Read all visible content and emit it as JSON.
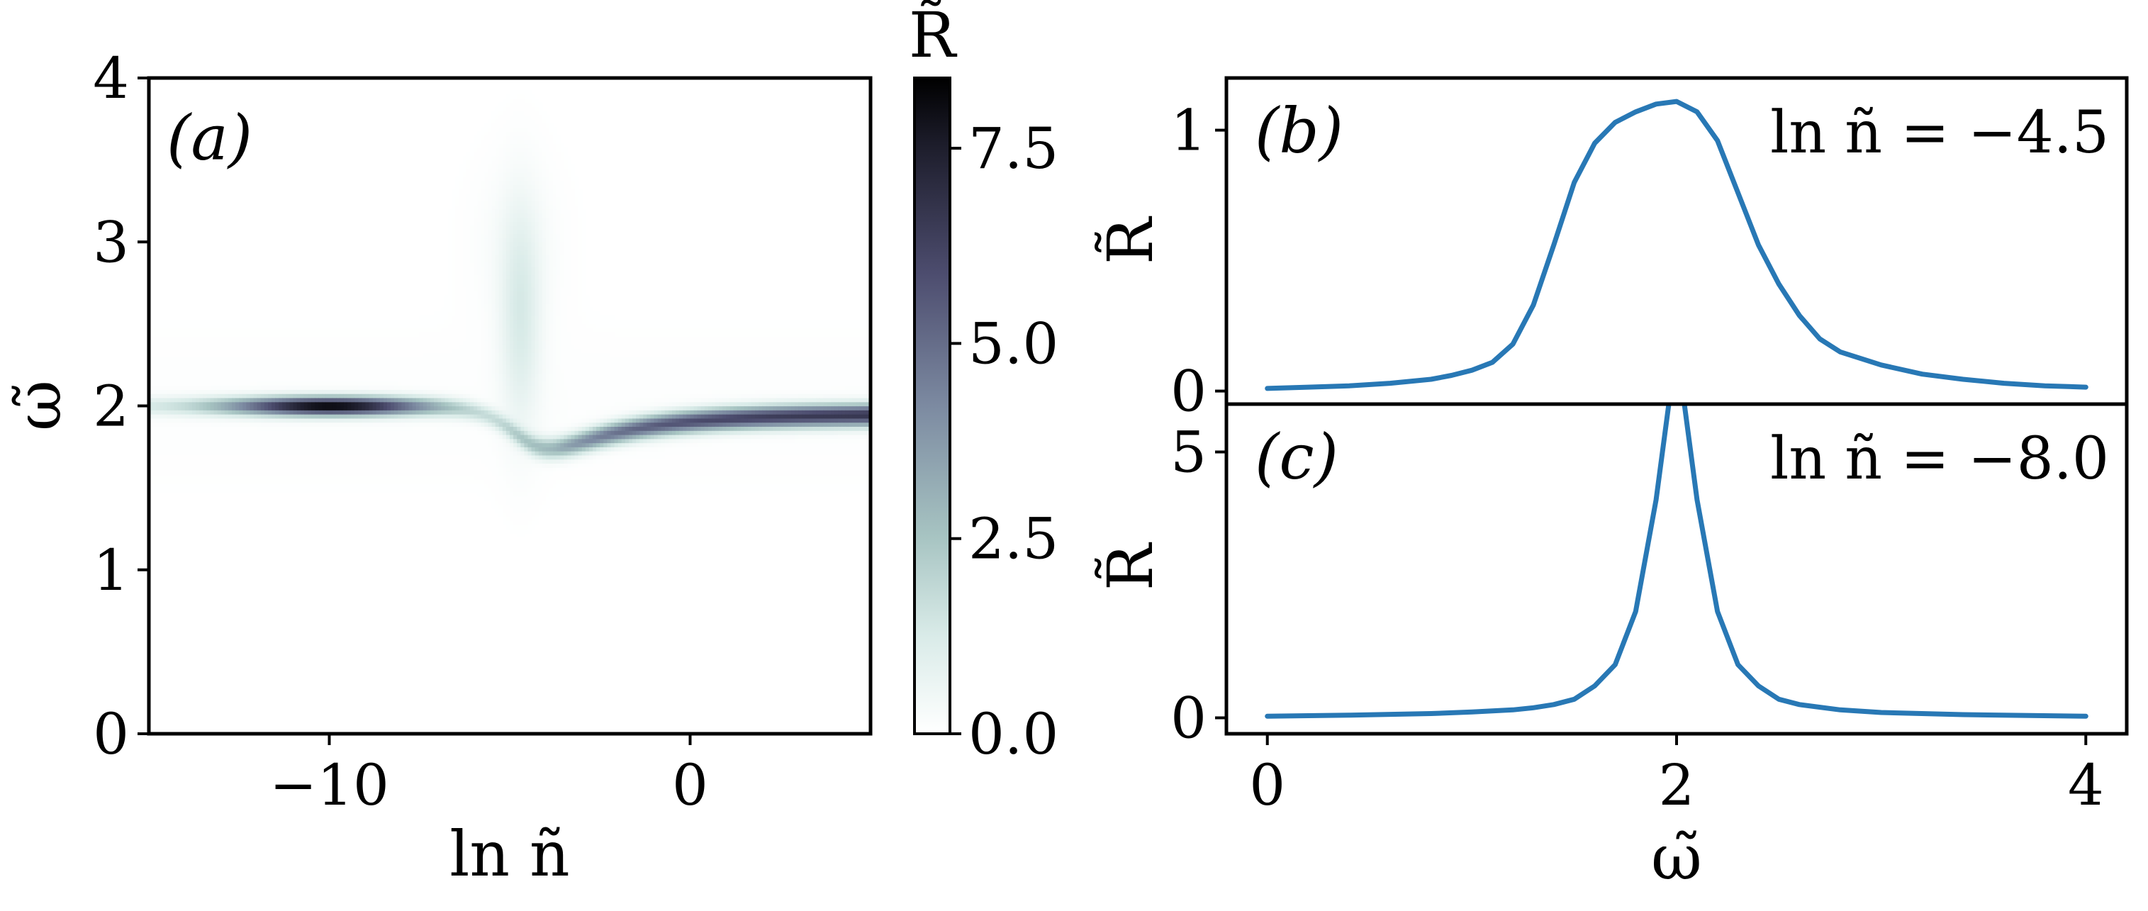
{
  "chart_data": [
    {
      "panel": "(a)",
      "type": "heatmap",
      "xlabel": "ln ñ",
      "ylabel": "ω̃",
      "xlim": [
        -15,
        5
      ],
      "ylim": [
        0,
        4
      ],
      "x_ticks": [
        -10,
        0
      ],
      "x_tick_labels": [
        "−10",
        "0"
      ],
      "y_ticks": [
        0,
        1,
        2,
        3,
        4
      ],
      "y_tick_labels": [
        "0",
        "1",
        "2",
        "3",
        "4"
      ],
      "colormap": "bone_r",
      "colorbar": {
        "label": "R̃",
        "range": [
          0,
          8.4
        ],
        "ticks": [
          0.0,
          2.5,
          5.0,
          7.5
        ],
        "tick_labels": [
          "0.0",
          "2.5",
          "5.0",
          "7.5"
        ]
      },
      "features": {
        "lower_branch_center": 2.0,
        "peak_value": 8.4,
        "peak_location_ln_n": -10,
        "crossing_ln_n": -4.5
      }
    },
    {
      "panel": "(b)",
      "type": "line",
      "annotation": "ln ñ = −4.5",
      "ylabel": "R̃",
      "xlim": [
        -0.2,
        4.2
      ],
      "ylim": [
        -0.05,
        1.2
      ],
      "y_ticks": [
        0,
        1
      ],
      "y_tick_labels": [
        "0",
        "1"
      ],
      "color": "#2878b5",
      "x": [
        0.0,
        0.2,
        0.4,
        0.6,
        0.8,
        0.9,
        1.0,
        1.1,
        1.2,
        1.3,
        1.4,
        1.5,
        1.6,
        1.7,
        1.8,
        1.9,
        2.0,
        2.1,
        2.2,
        2.3,
        2.4,
        2.5,
        2.6,
        2.7,
        2.8,
        3.0,
        3.2,
        3.4,
        3.6,
        3.8,
        4.0
      ],
      "y": [
        0.01,
        0.015,
        0.02,
        0.03,
        0.045,
        0.06,
        0.08,
        0.11,
        0.18,
        0.33,
        0.56,
        0.8,
        0.95,
        1.03,
        1.07,
        1.1,
        1.11,
        1.07,
        0.96,
        0.76,
        0.56,
        0.41,
        0.29,
        0.2,
        0.15,
        0.1,
        0.065,
        0.045,
        0.03,
        0.02,
        0.015
      ]
    },
    {
      "panel": "(c)",
      "type": "line",
      "annotation": "ln ñ = −8.0",
      "ylabel": "R̃",
      "xlabel": "ω̃",
      "xlim": [
        -0.2,
        4.2
      ],
      "ylim": [
        -0.3,
        5.9
      ],
      "x_ticks": [
        0,
        2,
        4
      ],
      "x_tick_labels": [
        "0",
        "2",
        "4"
      ],
      "y_ticks": [
        0,
        5
      ],
      "y_tick_labels": [
        "0",
        "5"
      ],
      "color": "#2878b5",
      "x": [
        0.0,
        0.4,
        0.8,
        1.0,
        1.2,
        1.3,
        1.4,
        1.5,
        1.6,
        1.7,
        1.8,
        1.9,
        2.0,
        2.1,
        2.2,
        2.3,
        2.4,
        2.5,
        2.6,
        2.8,
        3.0,
        3.4,
        4.0
      ],
      "y": [
        0.03,
        0.05,
        0.08,
        0.11,
        0.15,
        0.19,
        0.25,
        0.35,
        0.6,
        1.0,
        2.0,
        4.1,
        7.0,
        4.1,
        2.0,
        1.0,
        0.6,
        0.35,
        0.25,
        0.15,
        0.1,
        0.06,
        0.03
      ]
    }
  ]
}
